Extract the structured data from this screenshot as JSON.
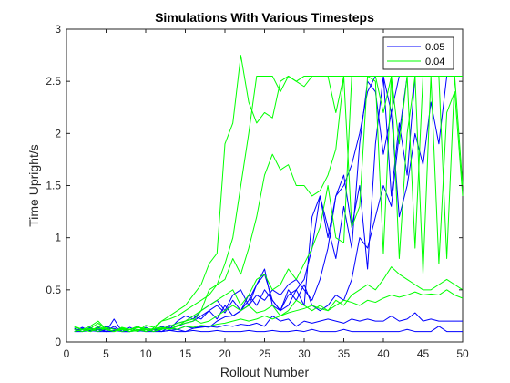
{
  "chart_data": {
    "type": "line",
    "title": "Simulations With Various Timesteps",
    "xlabel": "Rollout Number",
    "ylabel": "Time Upright/s",
    "xlim": [
      0,
      50
    ],
    "ylim": [
      0,
      3
    ],
    "xticks": [
      0,
      5,
      10,
      15,
      20,
      25,
      30,
      35,
      40,
      45,
      50
    ],
    "yticks": [
      0,
      0.5,
      1,
      1.5,
      2,
      2.5,
      3
    ],
    "xtick_labels": [
      "0",
      "5",
      "10",
      "15",
      "20",
      "25",
      "30",
      "35",
      "40",
      "45",
      "50"
    ],
    "ytick_labels": [
      "0",
      "0.5",
      "1",
      "1.5",
      "2",
      "2.5",
      "3"
    ],
    "grid": false,
    "legend_position": "top-right",
    "legend": [
      {
        "label": "0.05",
        "color": "#0000ff"
      },
      {
        "label": "0.04",
        "color": "#00ff00"
      }
    ],
    "x": [
      1,
      2,
      3,
      4,
      5,
      6,
      7,
      8,
      9,
      10,
      11,
      12,
      13,
      14,
      15,
      16,
      17,
      18,
      19,
      20,
      21,
      22,
      23,
      24,
      25,
      26,
      27,
      28,
      29,
      30,
      31,
      32,
      33,
      34,
      35,
      36,
      37,
      38,
      39,
      40,
      41,
      42,
      43,
      44,
      45,
      46,
      47,
      48,
      49,
      50
    ],
    "series": [
      {
        "group": "0.05",
        "color": "#0000ff",
        "values": [
          0.13,
          0.1,
          0.14,
          0.1,
          0.12,
          0.13,
          0.1,
          0.1,
          0.12,
          0.1,
          0.13,
          0.1,
          0.11,
          0.12,
          0.1,
          0.13,
          0.15,
          0.14,
          0.2,
          0.24,
          0.25,
          0.3,
          0.35,
          0.45,
          0.4,
          0.5,
          0.45,
          0.55,
          0.6,
          0.5,
          0.4,
          0.6,
          0.9,
          1.4,
          1.5,
          1.7,
          2.0,
          2.4,
          2.55,
          2.55,
          2.2,
          2.55,
          2.55,
          2.55,
          2.55,
          2.55,
          2.55,
          2.55,
          2.55,
          2.55
        ]
      },
      {
        "group": "0.05",
        "color": "#0000ff",
        "values": [
          0.1,
          0.14,
          0.1,
          0.12,
          0.1,
          0.15,
          0.1,
          0.12,
          0.1,
          0.14,
          0.1,
          0.12,
          0.15,
          0.18,
          0.2,
          0.25,
          0.22,
          0.3,
          0.35,
          0.28,
          0.4,
          0.3,
          0.45,
          0.35,
          0.5,
          0.4,
          0.3,
          0.35,
          0.5,
          0.6,
          0.9,
          1.4,
          1.1,
          0.8,
          1.3,
          0.9,
          1.9,
          2.5,
          2.4,
          1.8,
          2.2,
          1.2,
          1.5,
          2.0,
          1.7,
          2.3,
          1.9,
          2.55,
          2.55,
          2.55
        ]
      },
      {
        "group": "0.05",
        "color": "#0000ff",
        "values": [
          0.12,
          0.1,
          0.13,
          0.1,
          0.15,
          0.12,
          0.1,
          0.14,
          0.1,
          0.12,
          0.1,
          0.15,
          0.12,
          0.2,
          0.25,
          0.22,
          0.3,
          0.35,
          0.4,
          0.3,
          0.45,
          0.5,
          0.35,
          0.55,
          0.65,
          0.4,
          0.3,
          0.45,
          0.5,
          0.35,
          1.2,
          1.4,
          1.0,
          1.4,
          1.6,
          1.1,
          1.5,
          0.7,
          1.9,
          2.55,
          1.4,
          2.1,
          1.6,
          2.55,
          2.55,
          2.55,
          2.55,
          2.55,
          2.55,
          2.55
        ]
      },
      {
        "group": "0.05",
        "color": "#0000ff",
        "values": [
          0.1,
          0.12,
          0.1,
          0.14,
          0.1,
          0.22,
          0.1,
          0.12,
          0.15,
          0.1,
          0.13,
          0.12,
          0.16,
          0.15,
          0.18,
          0.2,
          0.25,
          0.3,
          0.22,
          0.35,
          0.25,
          0.3,
          0.4,
          0.55,
          0.7,
          0.35,
          0.3,
          0.5,
          0.4,
          0.55,
          0.35,
          0.3,
          0.35,
          0.45,
          0.4,
          0.6,
          1.0,
          0.9,
          1.2,
          1.5,
          1.3,
          2.0,
          2.55,
          2.55,
          2.55,
          2.55,
          2.55,
          2.55,
          2.55,
          2.55
        ]
      },
      {
        "group": "0.05",
        "color": "#0000ff",
        "values": [
          0.1,
          0.13,
          0.1,
          0.12,
          0.1,
          0.1,
          0.13,
          0.1,
          0.12,
          0.1,
          0.12,
          0.1,
          0.14,
          0.12,
          0.15,
          0.13,
          0.14,
          0.15,
          0.14,
          0.16,
          0.15,
          0.17,
          0.16,
          0.18,
          0.15,
          0.25,
          0.2,
          0.22,
          0.15,
          0.2,
          0.18,
          0.2,
          0.22,
          0.2,
          0.18,
          0.22,
          0.2,
          0.22,
          0.2,
          0.2,
          0.25,
          0.2,
          0.22,
          0.28,
          0.2,
          0.22,
          0.2,
          0.2,
          0.2,
          0.2
        ]
      },
      {
        "group": "0.05",
        "color": "#0000ff",
        "values": [
          0.1,
          0.1,
          0.11,
          0.1,
          0.1,
          0.11,
          0.1,
          0.1,
          0.11,
          0.1,
          0.1,
          0.1,
          0.11,
          0.1,
          0.1,
          0.11,
          0.1,
          0.1,
          0.11,
          0.1,
          0.1,
          0.1,
          0.11,
          0.1,
          0.1,
          0.11,
          0.1,
          0.1,
          0.11,
          0.1,
          0.12,
          0.1,
          0.1,
          0.1,
          0.12,
          0.1,
          0.1,
          0.1,
          0.1,
          0.1,
          0.1,
          0.1,
          0.12,
          0.1,
          0.1,
          0.1,
          0.15,
          0.1,
          0.1,
          0.1
        ]
      },
      {
        "group": "0.04",
        "color": "#00ff00",
        "values": [
          0.15,
          0.12,
          0.13,
          0.18,
          0.12,
          0.1,
          0.13,
          0.12,
          0.14,
          0.13,
          0.12,
          0.2,
          0.25,
          0.3,
          0.35,
          0.45,
          0.55,
          0.75,
          0.85,
          1.9,
          2.1,
          2.75,
          2.3,
          2.1,
          2.2,
          2.15,
          2.5,
          2.55,
          2.5,
          2.55,
          2.55,
          2.55,
          2.55,
          2.55,
          2.55,
          2.55,
          2.55,
          2.55,
          2.55,
          2.55,
          2.55,
          2.55,
          2.55,
          2.55,
          2.55,
          2.55,
          2.55,
          2.55,
          2.55,
          2.55
        ]
      },
      {
        "group": "0.04",
        "color": "#00ff00",
        "values": [
          0.1,
          0.12,
          0.15,
          0.2,
          0.12,
          0.1,
          0.14,
          0.12,
          0.1,
          0.16,
          0.14,
          0.2,
          0.22,
          0.25,
          0.3,
          0.35,
          0.4,
          0.45,
          0.55,
          0.75,
          1.0,
          1.5,
          2.0,
          2.55,
          2.55,
          2.55,
          2.4,
          2.55,
          2.5,
          2.45,
          2.55,
          2.55,
          2.55,
          2.2,
          2.55,
          2.55,
          2.55,
          2.55,
          2.55,
          2.55,
          2.55,
          2.55,
          2.55,
          2.55,
          2.55,
          2.55,
          2.55,
          2.55,
          2.55,
          2.55
        ]
      },
      {
        "group": "0.04",
        "color": "#00ff00",
        "values": [
          0.12,
          0.1,
          0.13,
          0.12,
          0.14,
          0.12,
          0.1,
          0.12,
          0.15,
          0.1,
          0.13,
          0.14,
          0.12,
          0.16,
          0.18,
          0.2,
          0.3,
          0.5,
          0.55,
          0.6,
          0.8,
          0.65,
          0.9,
          1.2,
          1.6,
          1.8,
          1.65,
          1.7,
          1.5,
          1.5,
          1.4,
          1.45,
          1.6,
          1.85,
          2.55,
          1.1,
          1.3,
          2.55,
          2.55,
          2.2,
          2.55,
          0.8,
          2.0,
          2.55,
          0.65,
          2.55,
          0.75,
          2.2,
          2.4,
          1.4
        ]
      },
      {
        "group": "0.04",
        "color": "#00ff00",
        "values": [
          0.1,
          0.12,
          0.1,
          0.13,
          0.12,
          0.1,
          0.13,
          0.1,
          0.12,
          0.1,
          0.12,
          0.13,
          0.15,
          0.18,
          0.2,
          0.25,
          0.3,
          0.35,
          0.4,
          0.45,
          0.5,
          0.35,
          0.45,
          0.6,
          0.65,
          0.5,
          0.55,
          0.7,
          0.6,
          0.75,
          0.9,
          1.1,
          1.5,
          1.0,
          0.95,
          2.55,
          2.55,
          2.55,
          2.5,
          0.85,
          2.55,
          1.9,
          2.55,
          0.9,
          2.55,
          2.55,
          2.55,
          0.8,
          2.55,
          1.5
        ]
      },
      {
        "group": "0.04",
        "color": "#00ff00",
        "values": [
          0.14,
          0.12,
          0.1,
          0.15,
          0.12,
          0.1,
          0.12,
          0.1,
          0.14,
          0.12,
          0.1,
          0.13,
          0.12,
          0.15,
          0.2,
          0.22,
          0.18,
          0.2,
          0.25,
          0.3,
          0.35,
          0.3,
          0.35,
          0.28,
          0.3,
          0.35,
          0.25,
          0.3,
          0.4,
          0.35,
          0.3,
          0.35,
          0.3,
          0.4,
          0.35,
          0.45,
          0.5,
          0.55,
          0.5,
          0.6,
          0.72,
          0.65,
          0.6,
          0.55,
          0.5,
          0.5,
          0.55,
          0.6,
          0.55,
          0.5
        ]
      },
      {
        "group": "0.04",
        "color": "#00ff00",
        "values": [
          0.12,
          0.1,
          0.12,
          0.1,
          0.13,
          0.1,
          0.12,
          0.1,
          0.11,
          0.12,
          0.1,
          0.12,
          0.13,
          0.12,
          0.15,
          0.14,
          0.16,
          0.15,
          0.17,
          0.18,
          0.2,
          0.22,
          0.2,
          0.22,
          0.25,
          0.22,
          0.25,
          0.28,
          0.3,
          0.32,
          0.35,
          0.32,
          0.3,
          0.35,
          0.4,
          0.38,
          0.35,
          0.4,
          0.38,
          0.42,
          0.45,
          0.43,
          0.45,
          0.48,
          0.45,
          0.46,
          0.45,
          0.5,
          0.45,
          0.42
        ]
      }
    ]
  }
}
